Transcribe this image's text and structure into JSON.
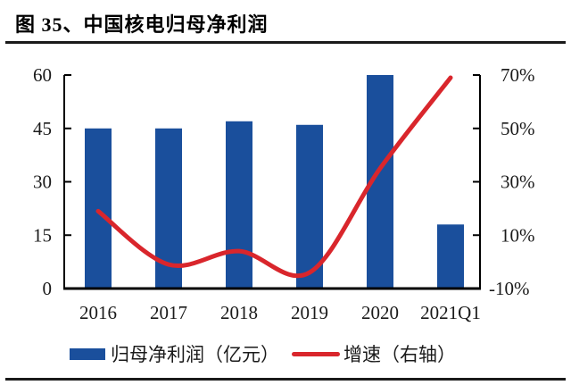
{
  "figure": {
    "title": "图 35、中国核电归母净利润"
  },
  "chart_data": {
    "type": "bar+line",
    "title": "图 35、中国核电归母净利润",
    "categories": [
      "2016",
      "2017",
      "2018",
      "2019",
      "2020",
      "2021Q1"
    ],
    "series": [
      {
        "name": "归母净利润（亿元）",
        "type": "bar",
        "axis": "left",
        "color": "#1a4f9c",
        "values": [
          45,
          45,
          47,
          46,
          60,
          18
        ]
      },
      {
        "name": "增速（右轴）",
        "type": "line",
        "axis": "right",
        "color": "#d9262c",
        "values_pct": [
          19,
          -1,
          4,
          -4,
          35,
          69
        ]
      }
    ],
    "left_axis": {
      "range": [
        0,
        60
      ],
      "ticks": [
        0,
        15,
        30,
        45,
        60
      ]
    },
    "right_axis": {
      "range_pct": [
        -10,
        70
      ],
      "tick_values": [
        -10,
        10,
        30,
        50,
        70
      ],
      "ticks": [
        "-10%",
        "10%",
        "30%",
        "50%",
        "70%"
      ]
    },
    "grid": "off",
    "legend_position": "bottom"
  }
}
